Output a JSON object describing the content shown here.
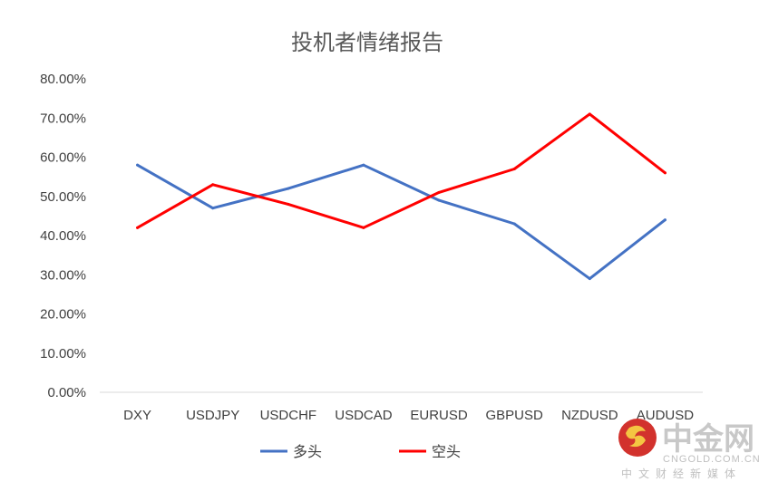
{
  "chart_data": {
    "type": "line",
    "title": "投机者情绪报告",
    "categories": [
      "DXY",
      "USDJPY",
      "USDCHF",
      "USDCAD",
      "EURUSD",
      "GBPUSD",
      "NZDUSD",
      "AUDUSD"
    ],
    "series": [
      {
        "name": "多头",
        "color": "#4472c4",
        "values": [
          58,
          47,
          52,
          58,
          49,
          43,
          29,
          44
        ]
      },
      {
        "name": "空头",
        "color": "#ff0000",
        "values": [
          42,
          53,
          48,
          42,
          51,
          57,
          71,
          56
        ]
      }
    ],
    "ylim": [
      0,
      80
    ],
    "yticks": [
      {
        "value": 80,
        "label": "80.00%"
      },
      {
        "value": 70,
        "label": "70.00%"
      },
      {
        "value": 60,
        "label": "60.00%"
      },
      {
        "value": 50,
        "label": "50.00%"
      },
      {
        "value": 40,
        "label": "40.00%"
      },
      {
        "value": 30,
        "label": "30.00%"
      },
      {
        "value": 20,
        "label": "20.00%"
      },
      {
        "value": 10,
        "label": "10.00%"
      },
      {
        "value": 0,
        "label": "0.00%"
      }
    ],
    "legend_position": "bottom",
    "grid": false
  },
  "watermark": {
    "name": "中金网",
    "url": "CNGOLD.COM.CN",
    "subtitle": "中文财经新媒体",
    "logo_color": "#d2322d"
  }
}
